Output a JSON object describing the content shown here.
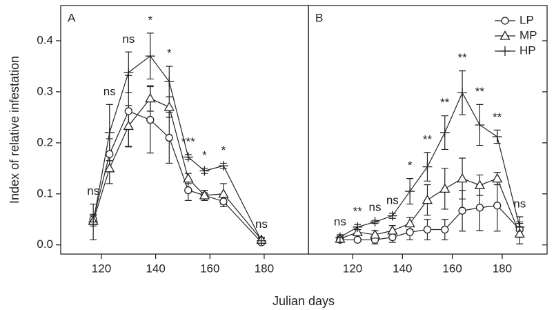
{
  "chart_data": [
    {
      "type": "line",
      "title": "A",
      "ylabel": "Index of relative infestation",
      "x": [
        117,
        123,
        130,
        138,
        145,
        152,
        158,
        165,
        179
      ],
      "series": [
        {
          "name": "LP",
          "marker": "circle",
          "color": "#222222",
          "values": [
            0.05,
            0.178,
            0.262,
            0.245,
            0.21,
            0.107,
            0.097,
            0.085,
            0.005
          ],
          "errors": [
            0.01,
            0.03,
            0.07,
            0.065,
            0.05,
            0.02,
            0.01,
            0.01,
            0.003
          ]
        },
        {
          "name": "MP",
          "marker": "triangle",
          "color": "#222222",
          "values": [
            0.047,
            0.15,
            0.233,
            0.287,
            0.27,
            0.13,
            0.097,
            0.1,
            0.01
          ],
          "errors": [
            0.01,
            0.03,
            0.04,
            0.025,
            0.02,
            0.01,
            0.01,
            0.02,
            0.005
          ]
        },
        {
          "name": "HP",
          "marker": "plus",
          "color": "#222222",
          "values": [
            0.045,
            0.22,
            0.338,
            0.37,
            0.32,
            0.172,
            0.145,
            0.155,
            0.008
          ],
          "errors": [
            0.035,
            0.055,
            0.04,
            0.045,
            0.03,
            0.005,
            0.005,
            0.005,
            0.005
          ]
        }
      ],
      "annotations": [
        "ns",
        "ns",
        "ns",
        "*",
        "*",
        "***",
        "*",
        "*",
        "ns"
      ],
      "xlim": [
        105,
        196.3
      ],
      "xticks": [
        120,
        140,
        160,
        180
      ],
      "ylim": [
        -0.018,
        0.469
      ],
      "yticks": [
        {
          "value": 0,
          "label": "0.0"
        },
        {
          "value": 0.1,
          "label": "0.1"
        },
        {
          "value": 0.2,
          "label": "0.2"
        },
        {
          "value": 0.3,
          "label": "0.3"
        },
        {
          "value": 0.4,
          "label": "0.4"
        }
      ],
      "ytick_labels": true,
      "legend": false
    },
    {
      "type": "line",
      "title": "B",
      "xlabel": "Julian days",
      "x": [
        115,
        122,
        129,
        136,
        143,
        150,
        157,
        164,
        171,
        178,
        187
      ],
      "series": [
        {
          "name": "LP",
          "marker": "circle",
          "color": "#222222",
          "values": [
            0.01,
            0.01,
            0.01,
            0.015,
            0.025,
            0.03,
            0.03,
            0.067,
            0.073,
            0.077,
            0.03
          ],
          "errors": [
            0.005,
            0.003,
            0.008,
            0.01,
            0.015,
            0.02,
            0.02,
            0.04,
            0.045,
            0.05,
            0.015
          ]
        },
        {
          "name": "MP",
          "marker": "triangle",
          "color": "#222222",
          "values": [
            0.012,
            0.025,
            0.02,
            0.028,
            0.042,
            0.088,
            0.11,
            0.13,
            0.117,
            0.13,
            0.022
          ],
          "errors": [
            0.005,
            0.005,
            0.008,
            0.01,
            0.012,
            0.03,
            0.04,
            0.04,
            0.02,
            0.012,
            0.02
          ]
        },
        {
          "name": "HP",
          "marker": "plus",
          "color": "#222222",
          "values": [
            0.015,
            0.035,
            0.045,
            0.057,
            0.105,
            0.153,
            0.22,
            0.298,
            0.235,
            0.212,
            0.035
          ],
          "errors": [
            0.005,
            0.005,
            0.003,
            0.005,
            0.025,
            0.028,
            0.033,
            0.043,
            0.04,
            0.013,
            0.02
          ]
        }
      ],
      "annotations": [
        "ns",
        "**",
        "ns",
        "ns",
        "*",
        "**",
        "**",
        "**",
        "**",
        "**",
        "ns"
      ],
      "xlim": [
        102.3,
        198
      ],
      "xticks": [
        120,
        140,
        160,
        180
      ],
      "ylim": [
        -0.018,
        0.469
      ],
      "yticks": [
        0,
        0.1,
        0.2,
        0.3,
        0.4
      ],
      "ytick_labels": false,
      "legend": "top-right"
    }
  ]
}
